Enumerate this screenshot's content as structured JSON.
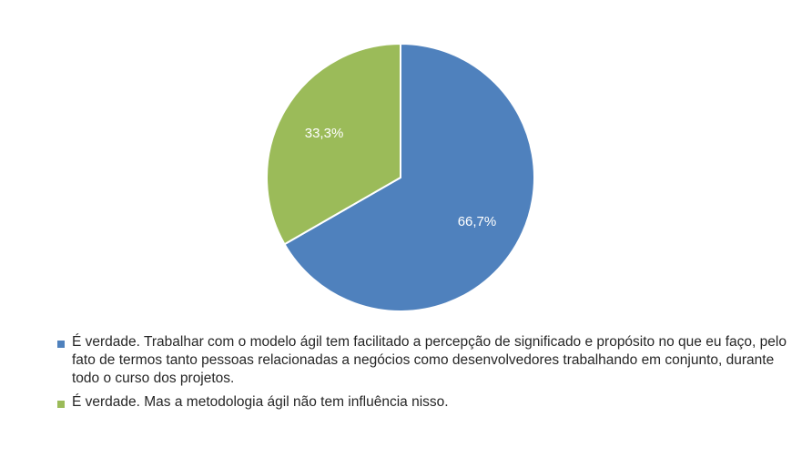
{
  "chart_data": {
    "type": "pie",
    "slices": [
      {
        "label": "É verdade. Trabalhar com o modelo ágil tem facilitado a percepção de significado e propósito no que eu faço, pelo fato de termos tanto pessoas relacionadas a negócios como desenvolvedores trabalhando em conjunto, durante todo o curso dos projetos.",
        "value": 66.7,
        "data_label": "66,7%",
        "color": "#4f81bd"
      },
      {
        "label": "É verdade. Mas a metodologia ágil não tem influência nisso.",
        "value": 33.3,
        "data_label": "33,3%",
        "color": "#9bbb59"
      }
    ],
    "legend_position": "bottom"
  }
}
